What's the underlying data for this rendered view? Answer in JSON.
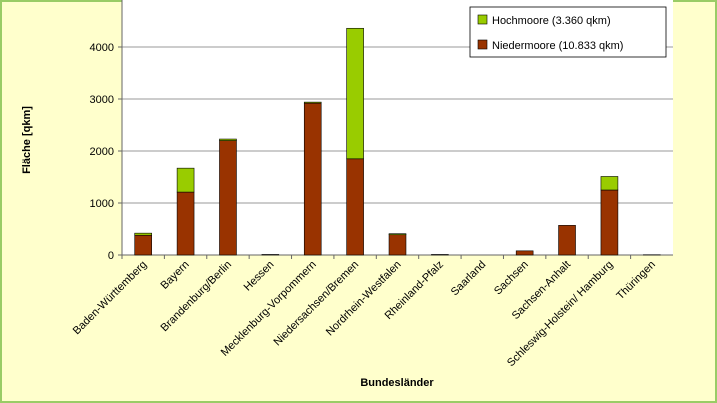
{
  "chart_data": {
    "type": "stacked-bar",
    "x_label": "Bundesländer",
    "y_label": "Fläche [qkm]",
    "categories": [
      "Baden-Württemberg",
      "Bayern",
      "Brandenburg/Berlin",
      "Hessen",
      "Mecklenburg-Vorpommern",
      "Niedersachsen/Bremen",
      "Nordrhein-Westfalen",
      "Rheinland-Pfalz",
      "Saarland",
      "Sachsen",
      "Sachsen-Anhalt",
      "Schleswig-Holstein/ Hamburg",
      "Thüringen"
    ],
    "series": [
      {
        "name": "Niedermoore (10.833 qkm)",
        "color": "#993300",
        "values": [
          380,
          1210,
          2200,
          10,
          2920,
          1850,
          390,
          10,
          0,
          80,
          570,
          1250,
          5
        ]
      },
      {
        "name": "Hochmoore (3.360 qkm)",
        "color": "#99cc00",
        "values": [
          40,
          460,
          30,
          0,
          20,
          2510,
          20,
          0,
          0,
          0,
          0,
          260,
          0
        ]
      }
    ],
    "ylim": [
      0,
      5000
    ],
    "yticks": [
      0,
      1000,
      2000,
      3000,
      4000
    ],
    "grid": true
  }
}
